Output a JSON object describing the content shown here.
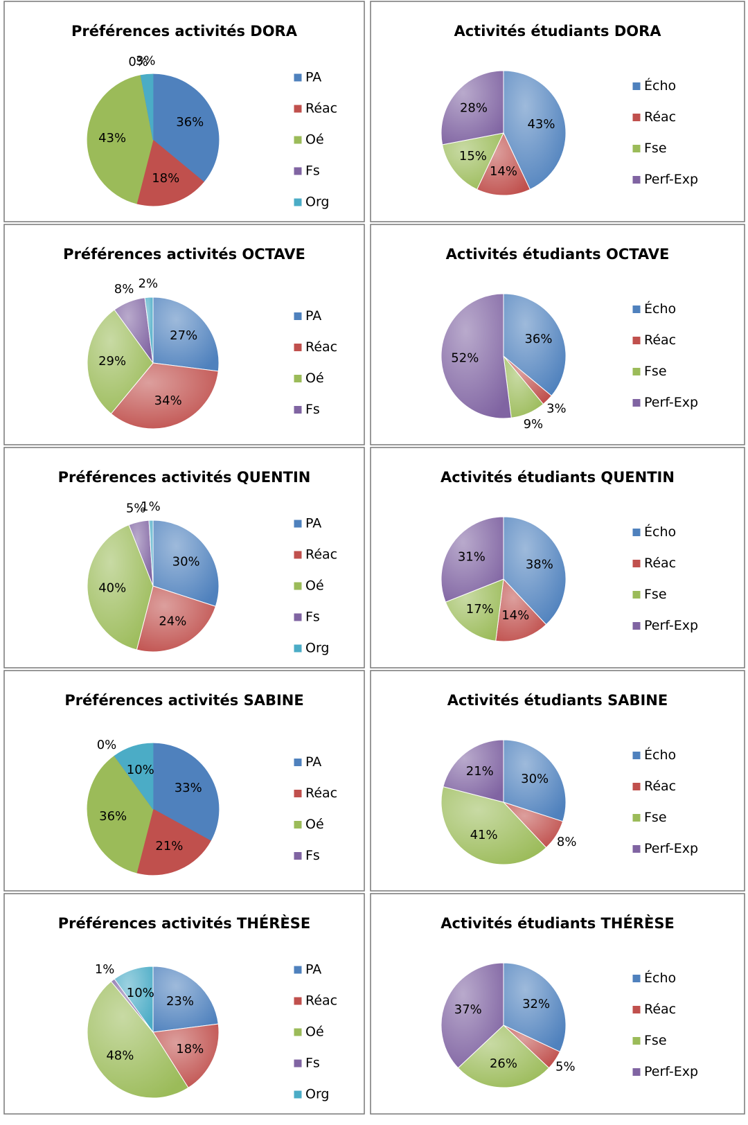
{
  "chart_data": [
    {
      "type": "pie",
      "title": "Préférences activités DORA",
      "categories": [
        "PA",
        "Réac",
        "Oé",
        "Fs",
        "Org"
      ],
      "values": [
        36,
        18,
        43,
        0,
        3
      ],
      "value_labels": [
        "36%",
        "18%",
        "43%",
        "0%",
        "3%"
      ],
      "colors": [
        "#4f81bd",
        "#c0504d",
        "#9bbb59",
        "#8064a2",
        "#4bacc6"
      ],
      "gradient": false
    },
    {
      "type": "pie",
      "title": "Activités étudiants DORA",
      "categories": [
        "Écho",
        "Réac",
        "Fse",
        "Perf-Exp"
      ],
      "values": [
        43,
        14,
        15,
        28
      ],
      "value_labels": [
        "43%",
        "14%",
        "15%",
        "28%"
      ],
      "colors": [
        "#4f81bd",
        "#c0504d",
        "#9bbb59",
        "#8064a2"
      ],
      "gradient": true
    },
    {
      "type": "pie",
      "title": "Préférences activités OCTAVE",
      "categories": [
        "PA",
        "Réac",
        "Oé",
        "Fs",
        null
      ],
      "values": [
        27,
        34,
        29,
        8,
        2
      ],
      "value_labels": [
        "27%",
        "34%",
        "29%",
        "8%",
        "2%"
      ],
      "colors": [
        "#4f81bd",
        "#c0504d",
        "#9bbb59",
        "#8064a2",
        "#4bacc6"
      ],
      "gradient": true
    },
    {
      "type": "pie",
      "title": "Activités étudiants OCTAVE",
      "categories": [
        "Écho",
        "Réac",
        "Fse",
        "Perf-Exp"
      ],
      "values": [
        36,
        3,
        9,
        52
      ],
      "value_labels": [
        "36%",
        "3%",
        "9%",
        "52%"
      ],
      "colors": [
        "#4f81bd",
        "#c0504d",
        "#9bbb59",
        "#8064a2"
      ],
      "gradient": true
    },
    {
      "type": "pie",
      "title": "Préférences activités QUENTIN",
      "categories": [
        "PA",
        "Réac",
        "Oé",
        "Fs",
        "Org"
      ],
      "values": [
        30,
        24,
        40,
        5,
        1
      ],
      "value_labels": [
        "30%",
        "24%",
        "40%",
        "5%",
        "1%"
      ],
      "colors": [
        "#4f81bd",
        "#c0504d",
        "#9bbb59",
        "#8064a2",
        "#4bacc6"
      ],
      "gradient": true
    },
    {
      "type": "pie",
      "title": "Activités étudiants QUENTIN",
      "categories": [
        "Écho",
        "Réac",
        "Fse",
        "Perf-Exp"
      ],
      "values": [
        38,
        14,
        17,
        31
      ],
      "value_labels": [
        "38%",
        "14%",
        "17%",
        "31%"
      ],
      "colors": [
        "#4f81bd",
        "#c0504d",
        "#9bbb59",
        "#8064a2"
      ],
      "gradient": true
    },
    {
      "type": "pie",
      "title": "Préférences activités SABINE",
      "categories": [
        "PA",
        "Réac",
        "Oé",
        "Fs",
        null
      ],
      "values": [
        33,
        21,
        36,
        0,
        10
      ],
      "value_labels": [
        "33%",
        "21%",
        "36%",
        "0%",
        "10%"
      ],
      "colors": [
        "#4f81bd",
        "#c0504d",
        "#9bbb59",
        "#8064a2",
        "#4bacc6"
      ],
      "gradient": false
    },
    {
      "type": "pie",
      "title": "Activités étudiants SABINE",
      "categories": [
        "Écho",
        "Réac",
        "Fse",
        "Perf-Exp"
      ],
      "values": [
        30,
        8,
        41,
        21
      ],
      "value_labels": [
        "30%",
        "8%",
        "41%",
        "21%"
      ],
      "colors": [
        "#4f81bd",
        "#c0504d",
        "#9bbb59",
        "#8064a2"
      ],
      "gradient": true
    },
    {
      "type": "pie",
      "title": "Préférences activités THÉRÈSE",
      "categories": [
        "PA",
        "Réac",
        "Oé",
        "Fs",
        "Org"
      ],
      "values": [
        23,
        18,
        48,
        1,
        10
      ],
      "value_labels": [
        "23%",
        "18%",
        "48%",
        "1%",
        "10%"
      ],
      "colors": [
        "#4f81bd",
        "#c0504d",
        "#9bbb59",
        "#8064a2",
        "#4bacc6"
      ],
      "gradient": true
    },
    {
      "type": "pie",
      "title": "Activités étudiants THÉRÈSE",
      "categories": [
        "Écho",
        "Réac",
        "Fse",
        "Perf-Exp"
      ],
      "values": [
        32,
        5,
        26,
        37
      ],
      "value_labels": [
        "32%",
        "5%",
        "26%",
        "37%"
      ],
      "colors": [
        "#4f81bd",
        "#c0504d",
        "#9bbb59",
        "#8064a2"
      ],
      "gradient": true
    }
  ]
}
